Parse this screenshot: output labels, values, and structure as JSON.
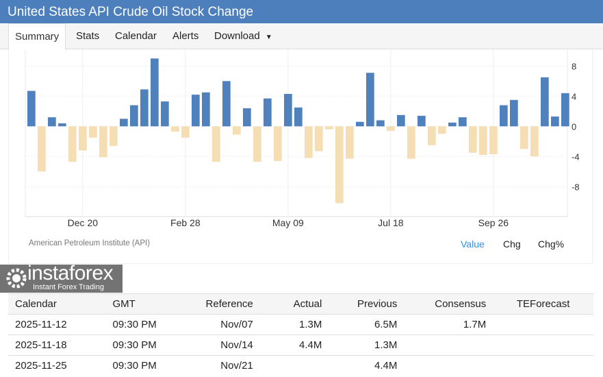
{
  "header": {
    "title": "United States API Crude Oil Stock Change"
  },
  "tabs": [
    {
      "label": "Summary",
      "active": true
    },
    {
      "label": "Stats"
    },
    {
      "label": "Calendar"
    },
    {
      "label": "Alerts"
    },
    {
      "label": "Download",
      "dropdown": true
    }
  ],
  "chart": {
    "source": "American Petroleum Institute (API)",
    "modes": [
      "Value",
      "Chg",
      "Chg%"
    ],
    "active_mode": "Value",
    "active_color": "#2f8ff0"
  },
  "chart_data": {
    "type": "bar",
    "x": [
      "2024-11-15",
      "2024-11-22",
      "2024-11-29",
      "2024-12-06",
      "2024-12-13",
      "2024-12-20",
      "2024-12-27",
      "2025-01-03",
      "2025-01-10",
      "2025-01-17",
      "2025-01-24",
      "2025-01-31",
      "2025-02-07",
      "2025-02-14",
      "2025-02-21",
      "2025-02-28",
      "2025-03-07",
      "2025-03-14",
      "2025-03-21",
      "2025-03-28",
      "2025-04-04",
      "2025-04-11",
      "2025-04-18",
      "2025-04-25",
      "2025-05-02",
      "2025-05-09",
      "2025-05-16",
      "2025-05-23",
      "2025-05-30",
      "2025-06-06",
      "2025-06-13",
      "2025-06-20",
      "2025-06-27",
      "2025-07-04",
      "2025-07-11",
      "2025-07-18",
      "2025-07-25",
      "2025-08-01",
      "2025-08-08",
      "2025-08-15",
      "2025-08-22",
      "2025-08-29",
      "2025-09-05",
      "2025-09-12",
      "2025-09-19",
      "2025-09-26",
      "2025-10-03",
      "2025-10-10",
      "2025-10-17",
      "2025-10-24",
      "2025-10-31",
      "2025-11-07",
      "2025-11-14"
    ],
    "values": [
      4.7,
      -6.0,
      1.2,
      0.4,
      -4.7,
      -3.2,
      -1.5,
      -4.1,
      -2.6,
      1.0,
      2.8,
      4.9,
      9.0,
      3.3,
      -0.7,
      -1.5,
      4.2,
      4.5,
      -4.7,
      6.0,
      -1.1,
      2.4,
      -4.7,
      3.7,
      -4.6,
      4.3,
      2.5,
      -4.2,
      -3.3,
      -0.4,
      -10.2,
      -4.3,
      0.6,
      7.1,
      0.8,
      -0.6,
      1.5,
      -4.3,
      1.4,
      -2.5,
      -1.0,
      0.5,
      1.2,
      -3.5,
      -3.8,
      -3.7,
      2.8,
      3.5,
      -3.0,
      -4.0,
      6.5,
      1.3,
      4.4
    ],
    "xtick_labels": [
      {
        "date": "2024-12-20",
        "label": "Dec 20"
      },
      {
        "date": "2025-02-28",
        "label": "Feb 28"
      },
      {
        "date": "2025-05-09",
        "label": "May 09"
      },
      {
        "date": "2025-07-18",
        "label": "Jul 18"
      },
      {
        "date": "2025-09-26",
        "label": "Sep 26"
      }
    ],
    "yticks": [
      8,
      4,
      0,
      -4,
      -8
    ],
    "ylim": [
      -12.5,
      9.5
    ],
    "y_axis_side": "right",
    "grid": true,
    "colors": {
      "positive": "#4f81bd",
      "negative": "#f5deb3"
    }
  },
  "table": {
    "columns": [
      "Calendar",
      "GMT",
      "Reference",
      "Actual",
      "Previous",
      "Consensus",
      "TEForecast"
    ],
    "rows": [
      [
        "2025-11-12",
        "09:30 PM",
        "Nov/07",
        "1.3M",
        "6.5M",
        "1.7M",
        ""
      ],
      [
        "2025-11-18",
        "09:30 PM",
        "Nov/14",
        "4.4M",
        "1.3M",
        "",
        ""
      ],
      [
        "2025-11-25",
        "09:30 PM",
        "Nov/21",
        "",
        "4.4M",
        "",
        ""
      ]
    ]
  },
  "watermark": {
    "brand": "instaforex",
    "tagline": "Instant Forex Trading"
  }
}
